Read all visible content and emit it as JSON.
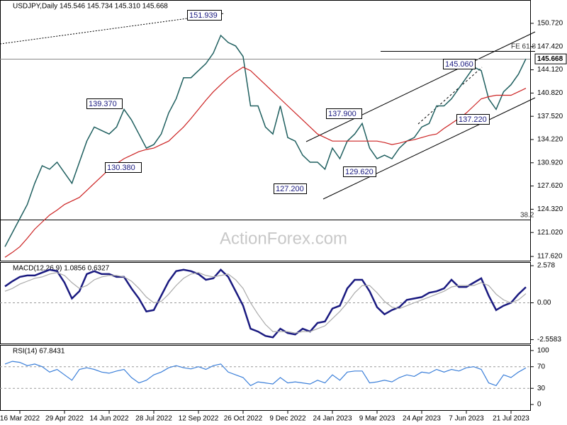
{
  "chart_data": [
    {
      "type": "line",
      "title": "USDJPY,Daily  145.546 145.734 145.310 145.668",
      "watermark": "ActionForex.com",
      "categories": [
        null,
        null,
        "16 Mar 2022",
        null,
        null,
        null,
        null,
        null,
        "29 Apr 2022",
        null,
        null,
        null,
        null,
        null,
        "14 Jun 2022",
        null,
        null,
        null,
        null,
        null,
        "28 Jul 2022",
        null,
        null,
        null,
        null,
        null,
        "12 Sep 2022",
        null,
        null,
        null,
        null,
        null,
        "26 Oct 2022",
        null,
        null,
        null,
        null,
        null,
        "9 Dec 2022",
        null,
        null,
        null,
        null,
        null,
        "24 Jan 2023",
        null,
        null,
        null,
        null,
        null,
        "9 Mar 2023",
        null,
        null,
        null,
        null,
        null,
        "24 Apr 2023",
        null,
        null,
        null,
        null,
        null,
        "7 Jun 2023",
        null,
        null,
        null,
        null,
        null,
        "21 Jul 2023",
        null,
        null
      ],
      "series": [
        {
          "color": "#1f5f5f",
          "values": [
            119,
            121,
            123,
            125,
            128,
            130.5,
            130,
            131,
            129.5,
            128,
            131,
            134,
            136,
            135.5,
            135,
            136,
            138.5,
            137,
            135,
            133,
            133.5,
            135,
            138,
            140,
            143,
            143,
            144,
            145,
            146.5,
            149,
            148,
            147.5,
            146,
            139,
            139,
            136,
            135,
            139,
            134.5,
            134,
            132,
            131,
            131,
            130,
            133,
            131.5,
            134,
            135,
            136.5,
            133,
            131.5,
            132,
            131.5,
            133,
            134,
            134.5,
            136,
            136.5,
            139,
            139,
            140,
            141.5,
            143,
            144.5,
            144,
            140,
            138.5,
            141,
            142,
            143.5,
            145.668
          ]
        },
        {
          "color": "#cc2222",
          "values": [
            117.5,
            118.2,
            119,
            120.2,
            121.5,
            122.5,
            123.5,
            124.2,
            125,
            125.5,
            126,
            127,
            128,
            129,
            130,
            130.8,
            131.5,
            132,
            132.5,
            132.8,
            133,
            133.5,
            134,
            135,
            136,
            137.2,
            138.5,
            139.8,
            141,
            142,
            143,
            143.8,
            144.5,
            144,
            143,
            142,
            141,
            140,
            139,
            138,
            137,
            136,
            135,
            134.5,
            134,
            134,
            134,
            134,
            134,
            134,
            134,
            133.8,
            133.5,
            133.7,
            134,
            134.2,
            134.5,
            134.8,
            135,
            135.8,
            136.5,
            137.2,
            138,
            139,
            140,
            140.3,
            140.5,
            140.5,
            140.5,
            141,
            141.5
          ]
        }
      ],
      "annotations": [
        "151.939",
        "139.370",
        "130.380",
        "137.900",
        "127.200",
        "129.620",
        "145.060",
        "137.220"
      ],
      "level_labels": [
        "FE 61.8",
        "38.2"
      ],
      "ylim": [
        117.02,
        153.93
      ],
      "yticks": [
        {
          "value": 150.72,
          "label": "150.720"
        },
        {
          "value": 147.42,
          "label": "147.420"
        },
        {
          "value": 144.12,
          "label": "144.120"
        },
        {
          "value": 140.82,
          "label": "140.820"
        },
        {
          "value": 137.52,
          "label": "137.520"
        },
        {
          "value": 134.22,
          "label": "134.220"
        },
        {
          "value": 130.92,
          "label": "130.920"
        },
        {
          "value": 127.62,
          "label": "127.620"
        },
        {
          "value": 124.32,
          "label": "124.320"
        },
        {
          "value": 121.02,
          "label": "121.020"
        },
        {
          "value": 117.62,
          "label": "117.620"
        }
      ]
    },
    {
      "type": "line",
      "title": "MACD(12,26,9) 1.0856 0.6327",
      "series": [
        {
          "color": "#1a1a80",
          "values": [
            1.14,
            1.5,
            1.8,
            1.9,
            1.9,
            2.1,
            2.3,
            2.2,
            1.4,
            0.3,
            0.8,
            2.0,
            2.2,
            2.0,
            2.0,
            1.8,
            1.8,
            1.0,
            0.3,
            -0.6,
            -0.5,
            0.5,
            1.5,
            2.2,
            2.3,
            2.2,
            2.0,
            1.6,
            1.7,
            2.3,
            1.8,
            0.8,
            -0.2,
            -1.8,
            -2.0,
            -2.3,
            -2.4,
            -1.8,
            -2.1,
            -2.2,
            -1.8,
            -2.0,
            -1.4,
            -1.3,
            -0.4,
            -0.2,
            1.0,
            1.6,
            1.6,
            0.8,
            -0.3,
            -0.8,
            -0.5,
            -0.3,
            0.2,
            0.3,
            0.4,
            0.7,
            0.8,
            1.0,
            1.6,
            1.1,
            1.1,
            1.4,
            1.7,
            0.5,
            -0.5,
            -0.2,
            0.0,
            0.6,
            1.0856
          ]
        },
        {
          "color": "#aaaaaa",
          "values": [
            0.8,
            1.0,
            1.3,
            1.5,
            1.7,
            1.8,
            2.0,
            2.1,
            1.9,
            1.4,
            1.0,
            1.2,
            1.6,
            1.8,
            1.9,
            1.9,
            1.8,
            1.5,
            1.0,
            0.4,
            0.0,
            0.1,
            0.6,
            1.2,
            1.7,
            2.0,
            2.1,
            1.9,
            1.8,
            1.9,
            2.0,
            1.6,
            1.0,
            0.0,
            -0.8,
            -1.5,
            -2.0,
            -2.0,
            -2.0,
            -2.1,
            -2.0,
            -2.0,
            -1.8,
            -1.6,
            -1.1,
            -0.6,
            0.0,
            0.7,
            1.2,
            1.2,
            0.7,
            0.1,
            -0.3,
            -0.4,
            -0.2,
            0.0,
            0.2,
            0.4,
            0.6,
            0.8,
            1.1,
            1.2,
            1.2,
            1.2,
            1.4,
            1.2,
            0.6,
            0.2,
            0.0,
            0.2,
            0.6327
          ]
        }
      ],
      "ylim": [
        -2.83,
        2.78
      ],
      "yticks": [
        2.578,
        {
          "value": 0,
          "label": "0.00"
        },
        -2.5583
      ],
      "grid_lines": [
        0
      ]
    },
    {
      "type": "line",
      "title": "RSI(14) 67.8431",
      "series": [
        {
          "color": "#3b7fd9",
          "values": [
            75,
            80,
            78,
            72,
            75,
            70,
            60,
            65,
            55,
            45,
            65,
            68,
            65,
            60,
            58,
            62,
            65,
            50,
            40,
            45,
            55,
            60,
            68,
            72,
            68,
            66,
            70,
            65,
            72,
            75,
            60,
            55,
            50,
            35,
            42,
            40,
            38,
            50,
            40,
            42,
            40,
            38,
            45,
            40,
            55,
            45,
            60,
            62,
            62,
            40,
            42,
            45,
            42,
            50,
            55,
            52,
            60,
            58,
            65,
            60,
            65,
            62,
            68,
            70,
            65,
            40,
            35,
            55,
            50,
            60,
            67.8431
          ]
        }
      ],
      "ylim": [
        -10.4,
        109
      ],
      "yticks": [
        100,
        70,
        30,
        0
      ],
      "grid_lines": [
        70,
        30
      ]
    }
  ]
}
